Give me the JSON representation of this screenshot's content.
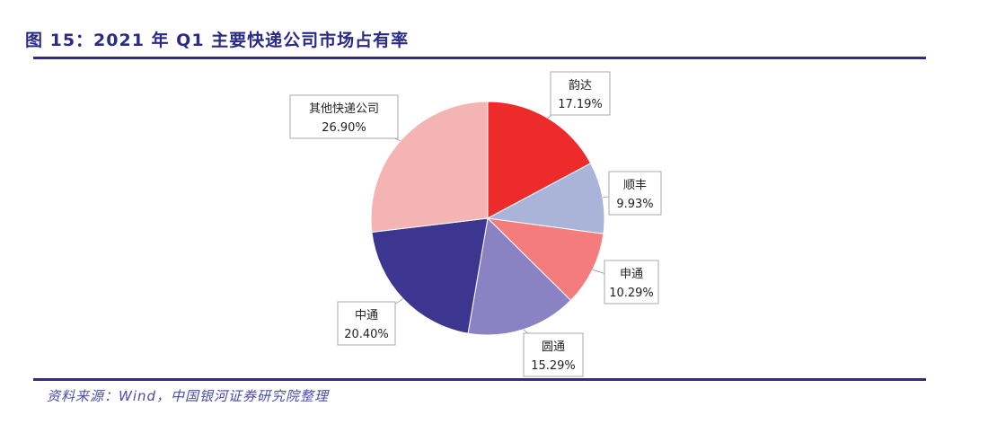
{
  "title": "图 15：2021 年 Q1 主要快递公司市场占有率",
  "source": "资料来源：Wind，中国银河证券研究院整理",
  "chart_data": {
    "type": "pie",
    "title": "图 15：2021 年 Q1 主要快递公司市场占有率",
    "start": "top, clockwise",
    "slices": [
      {
        "label": "韵达",
        "value": 17.19,
        "display": "17.19%",
        "color": "#ee2b2b"
      },
      {
        "label": "顺丰",
        "value": 9.93,
        "display": "9.93%",
        "color": "#aab4d8"
      },
      {
        "label": "申通",
        "value": 10.29,
        "display": "10.29%",
        "color": "#f47c7c"
      },
      {
        "label": "圆通",
        "value": 15.29,
        "display": "15.29%",
        "color": "#8a82c2"
      },
      {
        "label": "中通",
        "value": 20.4,
        "display": "20.40%",
        "color": "#3d3690"
      },
      {
        "label": "其他快递公司",
        "value": 26.9,
        "display": "26.90%",
        "color": "#f5b4b4"
      }
    ]
  }
}
